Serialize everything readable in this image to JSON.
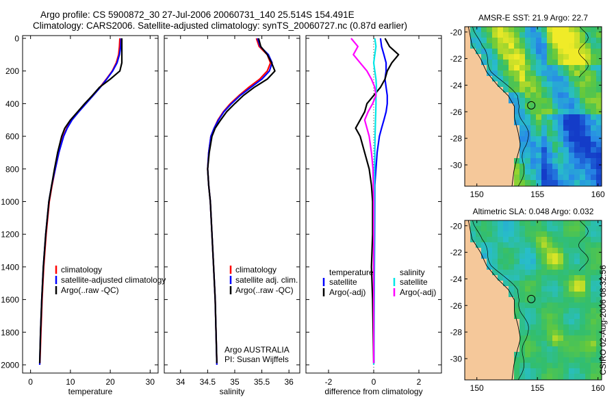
{
  "titles": {
    "line1": "Argo profile: CS 5900872_30 27-Jul-2006 20060731_140 25.514S 154.491E",
    "line2": "Climatology: CARS2006. Satellite-adjusted climatology: synTS_20060727.nc (0.87d earlier)"
  },
  "credit": "CSIRO 02-Aug-2006 08:32:56",
  "colors": {
    "clim": "#ff0000",
    "sat": "#0000ff",
    "argo": "#000000",
    "cyan": "#00e6e6",
    "magenta": "#ff00ff",
    "land": "#f5c89a"
  },
  "chart_data": [
    {
      "type": "line",
      "id": "temperature",
      "xlabel": "temperature",
      "ylim": [
        2000,
        0
      ],
      "xlim": [
        -2,
        32
      ],
      "xticks": [
        0,
        10,
        20,
        30
      ],
      "yticks": [
        0,
        200,
        400,
        600,
        800,
        1000,
        1200,
        1400,
        1600,
        1800,
        2000
      ],
      "legend": [
        "climatology",
        "satellite-adjusted climatology",
        "Argo(..raw -QC)"
      ],
      "series": [
        {
          "name": "climatology",
          "color": "#ff0000",
          "x": [
            22.4,
            22.3,
            22.1,
            21.5,
            20.5,
            19,
            17.4,
            15.6,
            13.8,
            12,
            10.3,
            9.1,
            8.2,
            7.1,
            6.2,
            5.4,
            4.7,
            3.9,
            3.3,
            2.9,
            2.6,
            2.35
          ],
          "y": [
            0,
            50,
            100,
            150,
            200,
            250,
            300,
            350,
            400,
            450,
            500,
            550,
            600,
            700,
            800,
            900,
            1000,
            1200,
            1400,
            1600,
            1800,
            1990
          ]
        },
        {
          "name": "satellite-adjusted climatology",
          "color": "#0000ff",
          "x": [
            22.7,
            22.6,
            22.3,
            21.7,
            20.6,
            19.1,
            17.5,
            15.7,
            13.9,
            12.1,
            10.4,
            9.2,
            8.3,
            7.1,
            6.2,
            5.3,
            4.6,
            3.8,
            3.2,
            2.8,
            2.5,
            2.3
          ],
          "y": [
            0,
            50,
            100,
            150,
            200,
            250,
            300,
            350,
            400,
            450,
            500,
            550,
            600,
            700,
            800,
            900,
            1000,
            1200,
            1400,
            1600,
            1800,
            2000
          ]
        },
        {
          "name": "Argo(..raw -QC)",
          "color": "#000000",
          "x": [
            22.9,
            22.9,
            22.9,
            22.9,
            22.4,
            20,
            17.3,
            15.5,
            13.6,
            11.8,
            10,
            8.6,
            7.8,
            6.8,
            6,
            5.3,
            4.6,
            3.8,
            3.2,
            2.8,
            2.5,
            2.3
          ],
          "y": [
            0,
            50,
            100,
            150,
            200,
            250,
            300,
            350,
            400,
            450,
            500,
            550,
            600,
            700,
            800,
            900,
            1000,
            1200,
            1400,
            1600,
            1800,
            1990
          ]
        }
      ]
    },
    {
      "type": "line",
      "id": "salinity",
      "xlabel": "salinity",
      "ylim": [
        2000,
        0
      ],
      "xlim": [
        33.7,
        36.2
      ],
      "xticks": [
        34,
        34.5,
        35,
        35.5,
        36
      ],
      "xtick_labels": [
        "34",
        "34.5",
        "35",
        "35.5",
        "36"
      ],
      "yticks": [
        0,
        200,
        400,
        600,
        800,
        1000,
        1200,
        1400,
        1600,
        1800,
        2000
      ],
      "legend": [
        "climatology",
        "satellite adj. clim.",
        "Argo(..raw -QC)"
      ],
      "annotation": [
        "Argo AUSTRALIA",
        "PI: Susan Wijffels"
      ],
      "series": [
        {
          "name": "climatology",
          "color": "#ff0000",
          "x": [
            35.4,
            35.45,
            35.6,
            35.66,
            35.6,
            35.46,
            35.26,
            35.08,
            34.92,
            34.79,
            34.69,
            34.62,
            34.56,
            34.52,
            34.5,
            34.52,
            34.55,
            34.58,
            34.61,
            34.64,
            34.67
          ],
          "y": [
            0,
            50,
            100,
            150,
            200,
            250,
            300,
            350,
            400,
            450,
            500,
            550,
            600,
            700,
            800,
            900,
            1000,
            1200,
            1400,
            1600,
            1990
          ]
        },
        {
          "name": "satellite adj. clim.",
          "color": "#0000ff",
          "x": [
            35.42,
            35.47,
            35.62,
            35.69,
            35.64,
            35.5,
            35.3,
            35.1,
            34.94,
            34.8,
            34.7,
            34.62,
            34.56,
            34.52,
            34.5,
            34.52,
            34.55,
            34.58,
            34.61,
            34.64,
            34.67
          ],
          "y": [
            0,
            50,
            100,
            150,
            200,
            250,
            300,
            350,
            400,
            450,
            500,
            550,
            600,
            700,
            800,
            900,
            1000,
            1200,
            1400,
            1600,
            2000
          ]
        },
        {
          "name": "Argo(..raw -QC)",
          "color": "#000000",
          "x": [
            35.44,
            35.48,
            35.6,
            35.68,
            35.74,
            35.6,
            35.36,
            35.16,
            35.0,
            34.85,
            34.74,
            34.64,
            34.58,
            34.53,
            34.5,
            34.52,
            34.55,
            34.58,
            34.61,
            34.64,
            34.67
          ],
          "y": [
            0,
            50,
            100,
            150,
            200,
            250,
            300,
            350,
            400,
            450,
            500,
            550,
            600,
            700,
            800,
            900,
            1000,
            1200,
            1400,
            1600,
            1990
          ]
        }
      ]
    },
    {
      "type": "line",
      "id": "difference",
      "xlabel": "difference from climatology",
      "ylim": [
        2000,
        0
      ],
      "xlim": [
        -3,
        3
      ],
      "xticks": [
        -2,
        0,
        2
      ],
      "yticks": [
        0,
        200,
        400,
        600,
        800,
        1000,
        1200,
        1400,
        1600,
        1800,
        2000
      ],
      "legend_left": {
        "heading": "temperature",
        "items": [
          "satellite",
          "Argo(-adj)"
        ]
      },
      "legend_right": {
        "heading": "salinity",
        "items": [
          "satellite",
          "Argo(-adj)"
        ]
      },
      "series": [
        {
          "name": "temperature satellite",
          "color": "#0000ff",
          "x": [
            0.3,
            0.35,
            0.45,
            0.55,
            0.55,
            0.5,
            0.55,
            0.6,
            0.6,
            0.55,
            0.45,
            0.35,
            0.25,
            0.15,
            0.1,
            0.05,
            0.04,
            0.03,
            0.02,
            0.01
          ],
          "y": [
            0,
            50,
            100,
            150,
            200,
            250,
            300,
            350,
            400,
            450,
            500,
            550,
            600,
            700,
            800,
            900,
            1200,
            1400,
            1600,
            1990
          ]
        },
        {
          "name": "temperature Argo(-adj)",
          "color": "#000000",
          "x": [
            0.5,
            0.7,
            1.1,
            0.8,
            0.6,
            0.5,
            0.3,
            0,
            -0.3,
            -0.4,
            -0.6,
            -0.8,
            -0.6,
            -0.4,
            -0.2,
            -0.1,
            -0.05,
            -0.05,
            -0.1,
            -0.05,
            0
          ],
          "y": [
            0,
            50,
            100,
            150,
            200,
            250,
            300,
            350,
            400,
            450,
            500,
            550,
            600,
            700,
            800,
            900,
            1000,
            1200,
            1400,
            1600,
            1990
          ]
        },
        {
          "name": "salinity satellite",
          "color": "#00e6e6",
          "x": [
            0.05,
            0.1,
            0.05,
            0.0,
            0.05,
            0.1,
            0.12,
            0.1,
            0.1,
            0.09,
            0.08,
            0.07,
            0.06,
            0.05,
            0.04,
            0.03,
            0.02,
            0.01,
            0.0
          ],
          "y": [
            0,
            50,
            100,
            150,
            200,
            250,
            300,
            350,
            400,
            450,
            500,
            550,
            600,
            700,
            800,
            1000,
            1400,
            1800,
            2000
          ]
        },
        {
          "name": "salinity Argo(-adj)",
          "color": "#ff00ff",
          "x": [
            -1,
            -0.7,
            -0.9,
            -0.6,
            -0.3,
            -0.1,
            0.05,
            0.1,
            -0.05,
            -0.25,
            -0.4,
            -0.3,
            -0.2,
            -0.1,
            -0.03,
            0,
            0,
            0,
            0
          ],
          "y": [
            0,
            50,
            100,
            150,
            200,
            250,
            300,
            350,
            400,
            450,
            500,
            550,
            600,
            700,
            800,
            1000,
            1400,
            1800,
            1990
          ]
        }
      ]
    },
    {
      "type": "heatmap",
      "id": "sst_map",
      "title": "AMSR-E SST: 21.9  Argo: 22.7",
      "xlim": [
        149,
        160.3
      ],
      "ylim": [
        -31.6,
        -19.6
      ],
      "xticks": [
        150,
        155,
        160
      ],
      "yticks": [
        -20,
        -22,
        -24,
        -26,
        -28,
        -30
      ],
      "marker": {
        "lon": 154.491,
        "lat": -25.514
      }
    },
    {
      "type": "heatmap",
      "id": "sla_map",
      "title": "Altimetric SLA: 0.048  Argo: 0.032",
      "xlim": [
        149,
        160.3
      ],
      "ylim": [
        -31.6,
        -19.6
      ],
      "xticks": [
        150,
        155,
        160
      ],
      "yticks": [
        -20,
        -22,
        -24,
        -26,
        -28,
        -30
      ],
      "marker": {
        "lon": 154.491,
        "lat": -25.514
      }
    }
  ]
}
